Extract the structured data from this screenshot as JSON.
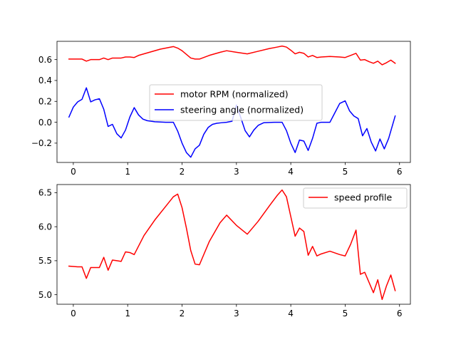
{
  "chart_data": [
    {
      "type": "line",
      "xlim": [
        -0.3,
        6.2
      ],
      "ylim": [
        -0.385,
        0.775
      ],
      "xticks": [
        "0",
        "1",
        "2",
        "3",
        "4",
        "5",
        "6"
      ],
      "yticks": [
        "−0.2",
        "0.0",
        "0.2",
        "0.4",
        "0.6"
      ],
      "xtick_values": [
        0,
        1,
        2,
        3,
        4,
        5,
        6
      ],
      "ytick_values": [
        -0.2,
        0.0,
        0.2,
        0.4,
        0.6
      ],
      "grid": false,
      "legend": "center",
      "series": [
        {
          "name": "motor RPM (normalized)",
          "color": "#ff0000",
          "x": [
            -0.08,
            0.0,
            0.08,
            0.16,
            0.24,
            0.32,
            0.4,
            0.48,
            0.56,
            0.64,
            0.72,
            0.8,
            0.88,
            0.96,
            1.04,
            1.12,
            1.2,
            1.4,
            1.6,
            1.75,
            1.84,
            1.92,
            2.0,
            2.08,
            2.16,
            2.24,
            2.32,
            2.5,
            2.7,
            2.82,
            3.0,
            3.2,
            3.4,
            3.6,
            3.75,
            3.84,
            3.92,
            4.0,
            4.08,
            4.16,
            4.24,
            4.32,
            4.4,
            4.48,
            4.56,
            4.72,
            4.9,
            5.0,
            5.1,
            5.2,
            5.28,
            5.36,
            5.44,
            5.52,
            5.6,
            5.68,
            5.76,
            5.84,
            5.92
          ],
          "values": [
            0.605,
            0.605,
            0.605,
            0.605,
            0.585,
            0.6,
            0.6,
            0.6,
            0.615,
            0.6,
            0.615,
            0.615,
            0.615,
            0.625,
            0.625,
            0.62,
            0.64,
            0.67,
            0.7,
            0.715,
            0.725,
            0.71,
            0.685,
            0.65,
            0.615,
            0.605,
            0.605,
            0.64,
            0.67,
            0.685,
            0.67,
            0.655,
            0.68,
            0.705,
            0.72,
            0.73,
            0.72,
            0.69,
            0.655,
            0.67,
            0.66,
            0.625,
            0.64,
            0.62,
            0.625,
            0.63,
            0.625,
            0.62,
            0.64,
            0.66,
            0.595,
            0.6,
            0.58,
            0.565,
            0.585,
            0.55,
            0.57,
            0.595,
            0.565
          ]
        },
        {
          "name": "steering angle (normalized)",
          "color": "#0000ff",
          "x": [
            -0.08,
            0.0,
            0.08,
            0.16,
            0.24,
            0.32,
            0.4,
            0.48,
            0.56,
            0.64,
            0.72,
            0.8,
            0.88,
            0.96,
            1.04,
            1.12,
            1.2,
            1.28,
            1.36,
            1.5,
            1.7,
            1.84,
            1.92,
            2.0,
            2.08,
            2.16,
            2.24,
            2.32,
            2.4,
            2.48,
            2.56,
            2.64,
            2.72,
            2.82,
            2.92,
            3.0,
            3.08,
            3.16,
            3.24,
            3.32,
            3.4,
            3.5,
            3.7,
            3.84,
            3.92,
            4.0,
            4.08,
            4.16,
            4.24,
            4.32,
            4.4,
            4.48,
            4.56,
            4.72,
            4.8,
            4.9,
            5.0,
            5.08,
            5.16,
            5.24,
            5.32,
            5.4,
            5.48,
            5.56,
            5.64,
            5.72,
            5.8,
            5.92
          ],
          "values": [
            0.05,
            0.145,
            0.195,
            0.22,
            0.33,
            0.195,
            0.215,
            0.225,
            0.125,
            -0.04,
            -0.02,
            -0.11,
            -0.15,
            -0.075,
            0.05,
            0.14,
            0.07,
            0.03,
            0.015,
            0.005,
            0.0,
            0.0,
            -0.085,
            -0.2,
            -0.29,
            -0.335,
            -0.255,
            -0.22,
            -0.115,
            -0.05,
            -0.02,
            -0.01,
            -0.005,
            0.0,
            0.01,
            0.165,
            0.045,
            -0.08,
            -0.14,
            -0.075,
            -0.03,
            -0.005,
            0.0,
            0.0,
            -0.08,
            -0.2,
            -0.29,
            -0.17,
            -0.18,
            -0.27,
            -0.155,
            -0.01,
            0.0,
            0.0,
            0.08,
            0.18,
            0.205,
            0.11,
            0.06,
            0.035,
            -0.13,
            -0.06,
            -0.19,
            -0.275,
            -0.16,
            -0.255,
            -0.155,
            0.06
          ]
        }
      ]
    },
    {
      "type": "line",
      "xlim": [
        -0.3,
        6.2
      ],
      "ylim": [
        4.86,
        6.62
      ],
      "xticks": [
        "0",
        "1",
        "2",
        "3",
        "4",
        "5",
        "6"
      ],
      "yticks": [
        "5.0",
        "5.5",
        "6.0",
        "6.5"
      ],
      "xtick_values": [
        0,
        1,
        2,
        3,
        4,
        5,
        6
      ],
      "ytick_values": [
        5.0,
        5.5,
        6.0,
        6.5
      ],
      "grid": false,
      "legend": "top-right",
      "series": [
        {
          "name": "speed profile",
          "color": "#ff0000",
          "x": [
            -0.08,
            0.0,
            0.08,
            0.16,
            0.24,
            0.32,
            0.4,
            0.48,
            0.56,
            0.64,
            0.72,
            0.8,
            0.88,
            0.96,
            1.04,
            1.12,
            1.3,
            1.5,
            1.7,
            1.84,
            1.92,
            2.0,
            2.08,
            2.16,
            2.24,
            2.32,
            2.5,
            2.7,
            2.82,
            3.0,
            3.2,
            3.4,
            3.6,
            3.75,
            3.84,
            3.92,
            4.0,
            4.08,
            4.16,
            4.24,
            4.32,
            4.4,
            4.48,
            4.56,
            4.72,
            4.9,
            5.0,
            5.1,
            5.2,
            5.28,
            5.36,
            5.44,
            5.52,
            5.6,
            5.68,
            5.76,
            5.84,
            5.92
          ],
          "values": [
            5.42,
            5.415,
            5.41,
            5.41,
            5.24,
            5.4,
            5.4,
            5.4,
            5.55,
            5.36,
            5.51,
            5.5,
            5.49,
            5.63,
            5.62,
            5.59,
            5.87,
            6.1,
            6.3,
            6.44,
            6.48,
            6.28,
            5.98,
            5.65,
            5.45,
            5.44,
            5.78,
            6.06,
            6.17,
            6.02,
            5.89,
            6.08,
            6.3,
            6.46,
            6.54,
            6.44,
            6.15,
            5.86,
            5.98,
            5.93,
            5.58,
            5.71,
            5.57,
            5.6,
            5.64,
            5.59,
            5.57,
            5.74,
            5.95,
            5.3,
            5.33,
            5.18,
            5.03,
            5.22,
            4.93,
            5.13,
            5.29,
            5.06
          ]
        }
      ]
    }
  ]
}
